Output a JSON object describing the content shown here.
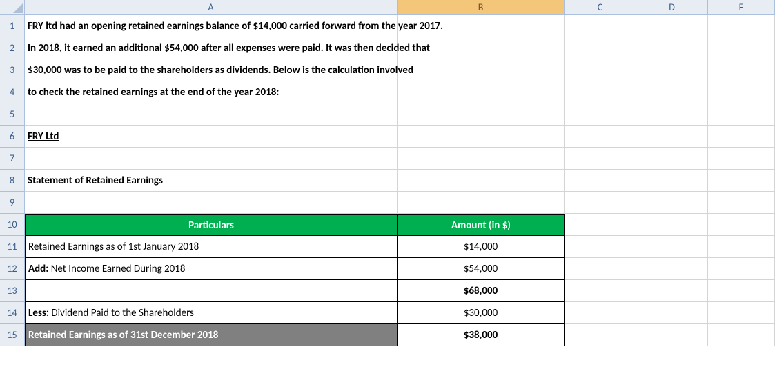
{
  "columns": [
    "A",
    "B",
    "C",
    "D",
    "E"
  ],
  "rownums": [
    "1",
    "2",
    "3",
    "4",
    "5",
    "6",
    "7",
    "8",
    "9",
    "10",
    "11",
    "12",
    "13",
    "14",
    "15"
  ],
  "text": {
    "r1": "FRY ltd had an opening retained earnings balance of $14,000 carried forward from the year 2017.",
    "r2": "In 2018, it earned an additional $54,000 after all expenses were paid. It was then decided that",
    "r3": "$30,000 was to be paid to the shareholders as dividends. Below is the calculation involved",
    "r4": "to check the retained earnings at the end of the year 2018:",
    "r6": "FRY Ltd",
    "r8": "Statement of Retained Earnings"
  },
  "table": {
    "header_particulars": "Particulars",
    "header_amount": "Amount (in $)",
    "rows": [
      {
        "label": "Retained Earnings as of 1st January 2018",
        "amount": "$14,000",
        "label_bold": false,
        "amount_bold": false,
        "amount_underline": false
      },
      {
        "label_prefix": "Add:",
        "label_rest": " Net Income Earned During 2018",
        "amount": "$54,000",
        "label_bold": false,
        "amount_bold": false,
        "amount_underline": false
      },
      {
        "label": "",
        "amount": "$68,000",
        "label_bold": false,
        "amount_bold": true,
        "amount_underline": true
      },
      {
        "label_prefix": "Less:",
        "label_rest": " Dividend Paid to the Shareholders",
        "amount": "$30,000",
        "label_bold": false,
        "amount_bold": false,
        "amount_underline": false
      },
      {
        "label": "Retained Earnings as of 31st December 2018",
        "amount": "$38,000",
        "gray": true,
        "amount_bold": true
      }
    ]
  },
  "colors": {
    "header_bg": "#00b050",
    "gray_bg": "#808080",
    "grid": "#d4d4d4",
    "colhead_bg": "#e8edf4"
  }
}
